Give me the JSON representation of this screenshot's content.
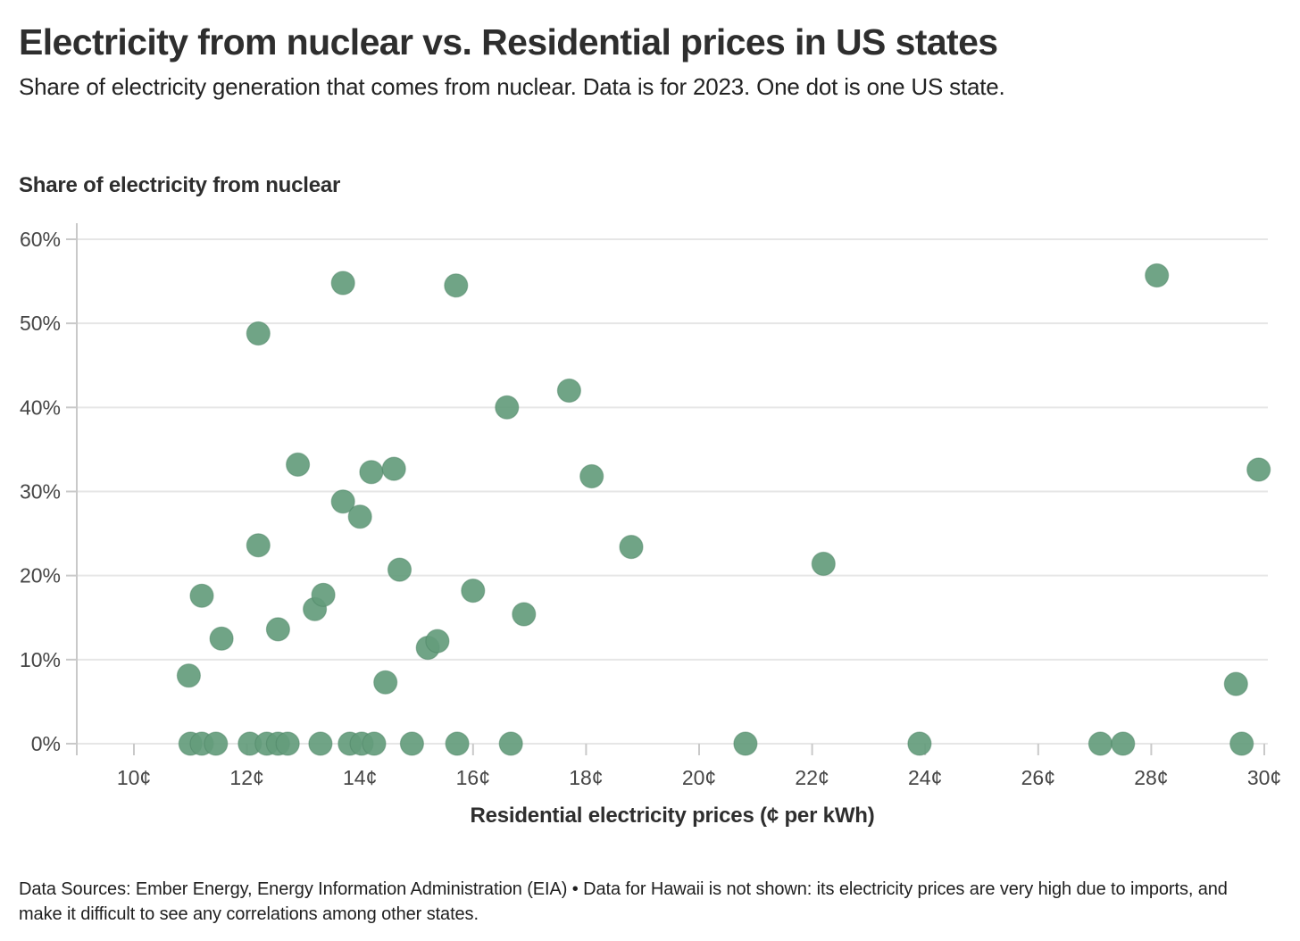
{
  "header": {
    "title": "Electricity from nuclear vs. Residential prices in US states",
    "subtitle": "Share of electricity generation that comes from nuclear. Data is for 2023. One dot is one US state."
  },
  "chart_data": {
    "type": "scatter",
    "title": "Electricity from nuclear vs. Residential prices in US states",
    "subtitle": "Share of electricity generation that comes from nuclear. Data is for 2023. One dot is one US state.",
    "x_axis_title": "Residential electricity prices (¢ per kWh)",
    "y_axis_title": "Share of electricity from nuclear",
    "xlim": [
      9,
      30.1
    ],
    "ylim": [
      0,
      62
    ],
    "grid": "horizontal",
    "legend": "none",
    "dot_color": "#649c7c",
    "dot_stroke_color": "#4a8062",
    "gridline_color": "#e6e6e6",
    "axis_color": "#c9c9c9",
    "tick_label_color": "#464646",
    "x_ticks": [
      {
        "value": 10,
        "label": "10¢"
      },
      {
        "value": 12,
        "label": "12¢"
      },
      {
        "value": 14,
        "label": "14¢"
      },
      {
        "value": 16,
        "label": "16¢"
      },
      {
        "value": 18,
        "label": "18¢"
      },
      {
        "value": 20,
        "label": "20¢"
      },
      {
        "value": 22,
        "label": "22¢"
      },
      {
        "value": 24,
        "label": "24¢"
      },
      {
        "value": 26,
        "label": "26¢"
      },
      {
        "value": 28,
        "label": "28¢"
      },
      {
        "value": 30,
        "label": "30¢"
      }
    ],
    "y_ticks": [
      {
        "value": 0,
        "label": "0%"
      },
      {
        "value": 10,
        "label": "10%"
      },
      {
        "value": 20,
        "label": "20%"
      },
      {
        "value": 30,
        "label": "30%"
      },
      {
        "value": 40,
        "label": "40%"
      },
      {
        "value": 50,
        "label": "50%"
      },
      {
        "value": 60,
        "label": "60%"
      }
    ],
    "points": [
      {
        "x": 10.97,
        "y": 8.1
      },
      {
        "x": 11.0,
        "y": 0
      },
      {
        "x": 11.2,
        "y": 0
      },
      {
        "x": 11.2,
        "y": 17.6
      },
      {
        "x": 11.45,
        "y": 0
      },
      {
        "x": 11.55,
        "y": 12.5
      },
      {
        "x": 12.05,
        "y": 0
      },
      {
        "x": 12.2,
        "y": 23.6
      },
      {
        "x": 12.2,
        "y": 48.8
      },
      {
        "x": 12.35,
        "y": 0
      },
      {
        "x": 12.55,
        "y": 0
      },
      {
        "x": 12.55,
        "y": 13.6
      },
      {
        "x": 12.72,
        "y": 0
      },
      {
        "x": 12.9,
        "y": 33.2
      },
      {
        "x": 13.2,
        "y": 16.0
      },
      {
        "x": 13.3,
        "y": 0
      },
      {
        "x": 13.35,
        "y": 17.7
      },
      {
        "x": 13.7,
        "y": 28.8
      },
      {
        "x": 13.7,
        "y": 54.8
      },
      {
        "x": 13.82,
        "y": 0
      },
      {
        "x": 14.0,
        "y": 27.0
      },
      {
        "x": 14.03,
        "y": 0
      },
      {
        "x": 14.2,
        "y": 32.3
      },
      {
        "x": 14.25,
        "y": 0
      },
      {
        "x": 14.45,
        "y": 7.3
      },
      {
        "x": 14.6,
        "y": 32.7
      },
      {
        "x": 14.7,
        "y": 20.7
      },
      {
        "x": 14.92,
        "y": 0
      },
      {
        "x": 15.2,
        "y": 11.4
      },
      {
        "x": 15.37,
        "y": 12.2
      },
      {
        "x": 15.7,
        "y": 54.5
      },
      {
        "x": 15.72,
        "y": 0
      },
      {
        "x": 16.0,
        "y": 18.2
      },
      {
        "x": 16.6,
        "y": 40.0
      },
      {
        "x": 16.67,
        "y": 0
      },
      {
        "x": 16.9,
        "y": 15.4
      },
      {
        "x": 17.7,
        "y": 42.0
      },
      {
        "x": 18.1,
        "y": 31.8
      },
      {
        "x": 18.8,
        "y": 23.4
      },
      {
        "x": 20.82,
        "y": 0
      },
      {
        "x": 22.2,
        "y": 21.4
      },
      {
        "x": 23.9,
        "y": 0
      },
      {
        "x": 27.1,
        "y": 0
      },
      {
        "x": 27.5,
        "y": 0
      },
      {
        "x": 28.1,
        "y": 55.7
      },
      {
        "x": 29.5,
        "y": 7.1
      },
      {
        "x": 29.6,
        "y": 0
      },
      {
        "x": 29.9,
        "y": 32.6
      }
    ]
  },
  "footer": {
    "source_note": "Data Sources: Ember Energy, Energy Information Administration (EIA) • Data for Hawaii is not shown: its electricity prices are very high due to imports, and make it difficult to see any correlations among other states."
  }
}
